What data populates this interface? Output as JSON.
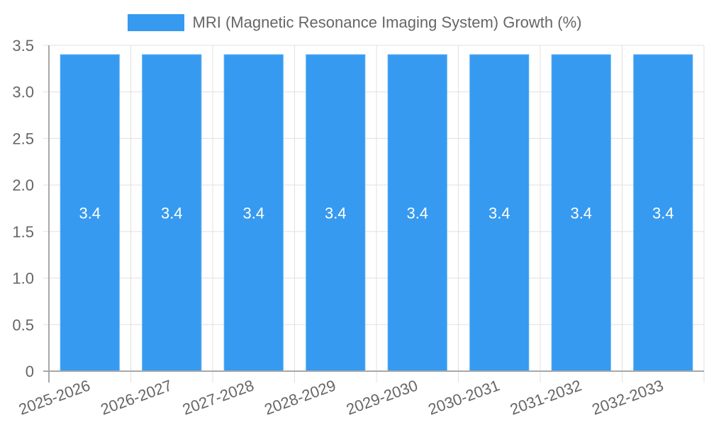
{
  "chart_data": {
    "type": "bar",
    "title": "",
    "xlabel": "",
    "ylabel": "",
    "categories": [
      "2025-2026",
      "2026-2027",
      "2027-2028",
      "2028-2029",
      "2029-2030",
      "2030-2031",
      "2031-2032",
      "2032-2033"
    ],
    "series": [
      {
        "name": "MRI (Magnetic Resonance Imaging System) Growth (%)",
        "values": [
          3.4,
          3.4,
          3.4,
          3.4,
          3.4,
          3.4,
          3.4,
          3.4
        ],
        "color": "#369AF0"
      }
    ],
    "data_labels": [
      "3.4",
      "3.4",
      "3.4",
      "3.4",
      "3.4",
      "3.4",
      "3.4",
      "3.4"
    ],
    "ylim": [
      0,
      3.5
    ],
    "yticks": [
      "0",
      "0.5",
      "1.0",
      "1.5",
      "2.0",
      "2.5",
      "3.0",
      "3.5"
    ],
    "grid": true,
    "legend_position": "top",
    "x_tick_rotation": -20
  },
  "legend": {
    "label": "MRI (Magnetic Resonance Imaging System) Growth (%)",
    "color": "#369AF0"
  },
  "colors": {
    "bar": "#369AF0",
    "bar_border": "#5AB0F5",
    "grid": "#E0E0E0",
    "axis": "#A8A8A8",
    "tick_text": "#666666",
    "data_label": "#FFFFFF"
  }
}
